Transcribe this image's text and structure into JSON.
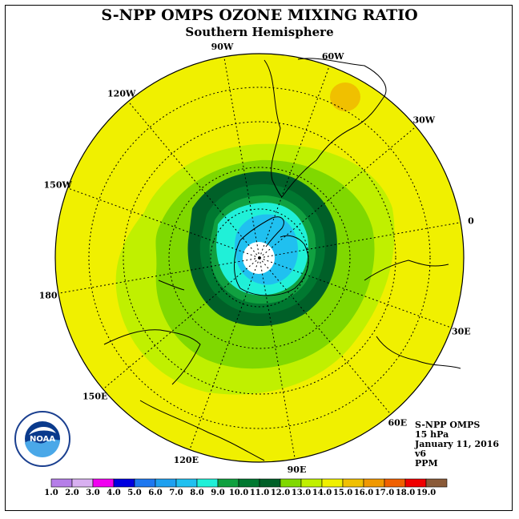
{
  "title": "S-NPP OMPS OZONE MIXING RATIO",
  "subtitle": "Southern Hemisphere",
  "longitude_labels": [
    {
      "text": "90W",
      "angle": -90
    },
    {
      "text": "60W",
      "angle": -60
    },
    {
      "text": "30W",
      "angle": -30
    },
    {
      "text": "0",
      "angle": 0
    },
    {
      "text": "30E",
      "angle": 30
    },
    {
      "text": "60E",
      "angle": 60
    },
    {
      "text": "90E",
      "angle": 90
    },
    {
      "text": "120E",
      "angle": 120
    },
    {
      "text": "150E",
      "angle": 150
    },
    {
      "text": "180",
      "angle": 180
    },
    {
      "text": "150W",
      "angle": -150
    },
    {
      "text": "120W",
      "angle": -120
    }
  ],
  "info": {
    "satellite": "S-NPP OMPS",
    "level": "15 hPa",
    "date": "January 11, 2016",
    "version": "v6",
    "units": "PPM"
  },
  "logo": {
    "text": "NOAA"
  },
  "colorbar": {
    "labels": [
      "1.0",
      "2.0",
      "3.0",
      "4.0",
      "5.0",
      "6.0",
      "7.0",
      "8.0",
      "9.0",
      "10.0",
      "11.0",
      "12.0",
      "13.0",
      "14.0",
      "15.0",
      "16.0",
      "17.0",
      "18.0",
      "19.0"
    ],
    "colors": [
      "#b57ee8",
      "#d8b0f0",
      "#f000f0",
      "#0000e0",
      "#1e78f0",
      "#1ea0f0",
      "#20c0f0",
      "#20f0d8",
      "#10a040",
      "#007830",
      "#006028",
      "#80d800",
      "#c0f000",
      "#f0f000",
      "#f0c000",
      "#f09800",
      "#f06000",
      "#f00000",
      "#8a5a38"
    ]
  },
  "ozone_field": {
    "outer_background_ppm": 14.0,
    "high_spot_ppm": 15.0,
    "polar_minimum_ppm": 5.0
  }
}
